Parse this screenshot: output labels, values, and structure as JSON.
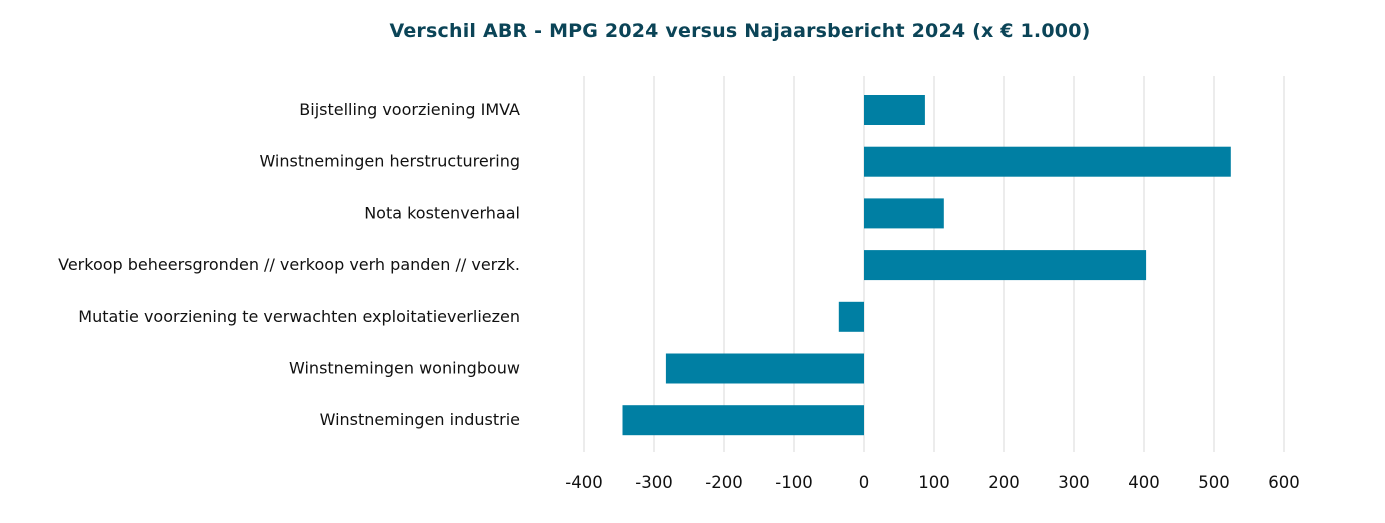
{
  "chart_data": {
    "type": "bar",
    "orientation": "horizontal",
    "title": "Verschil ABR - MPG 2024 versus Najaarsbericht 2024 (x € 1.000)",
    "categories": [
      "Bijstelling voorziening IMVA",
      "Winstnemingen herstructurering",
      "Nota kostenverhaal",
      "Verkoop beheersgronden // verkoop verh panden  // verzk.",
      "Mutatie voorziening te verwachten exploitatieverliezen",
      "Winstnemingen woningbouw",
      "Winstnemingen industrie"
    ],
    "values": [
      87,
      524,
      114,
      403,
      -36,
      -283,
      -345
    ],
    "xlim": [
      -400,
      600
    ],
    "xticks": [
      -400,
      -300,
      -200,
      -100,
      0,
      100,
      200,
      300,
      400,
      500,
      600
    ],
    "xtick_labels": [
      "-400",
      "-300",
      "-200",
      "-100",
      "0",
      "100",
      "200",
      "300",
      "400",
      "500",
      "600"
    ],
    "grid": true,
    "bar_color": "#007fa3",
    "grid_color": "#d9d9d9",
    "title_color": "#0b4457"
  }
}
